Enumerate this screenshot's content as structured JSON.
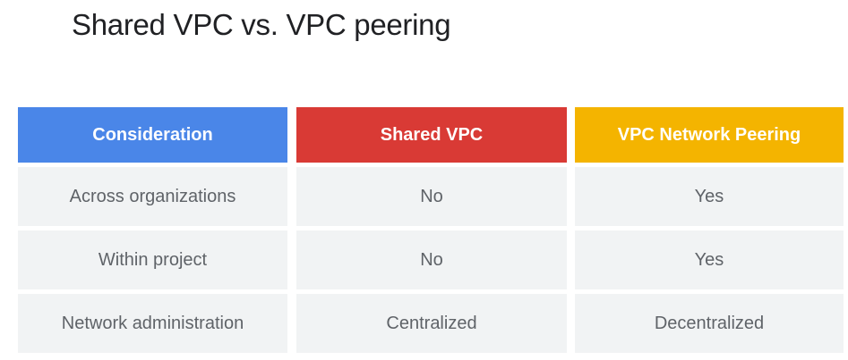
{
  "slide": {
    "title": "Shared VPC vs. VPC peering"
  },
  "table": {
    "headers": [
      "Consideration",
      "Shared VPC",
      "VPC Network Peering"
    ],
    "header_colors": [
      "#4a86e8",
      "#d93a35",
      "#f4b400"
    ],
    "rows": [
      [
        "Across organizations",
        "No",
        "Yes"
      ],
      [
        "Within project",
        "No",
        "Yes"
      ],
      [
        "Network administration",
        "Centralized",
        "Decentralized"
      ]
    ]
  }
}
